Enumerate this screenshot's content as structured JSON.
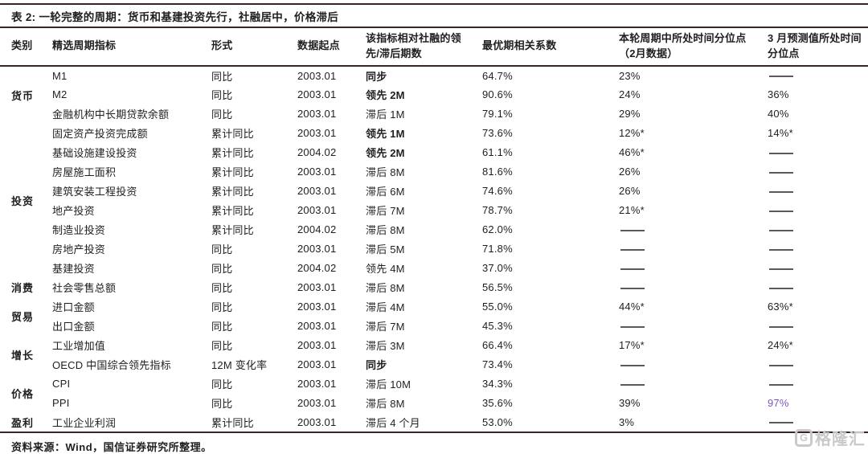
{
  "title": "表 2: 一轮完整的周期：货币和基建投资先行，社融居中，价格滞后",
  "table": {
    "columns": [
      "类别",
      "精选周期指标",
      "形式",
      "数据起点",
      "该指标相对社融的领先/滞后期数",
      "最优期相关系数",
      "本轮周期中所处时间分位点（2月数据）",
      "3 月预测值所处时间分位点"
    ],
    "categories": [
      {
        "label": "货币",
        "span": 3
      },
      {
        "label": "投资",
        "span": 8
      },
      {
        "label": "消费",
        "span": 1
      },
      {
        "label": "贸易",
        "span": 2
      },
      {
        "label": "增长",
        "span": 2
      },
      {
        "label": "价格",
        "span": 2
      },
      {
        "label": "盈利",
        "span": 1
      }
    ],
    "rows": [
      {
        "indicator": "M1",
        "form": "同比",
        "start": "2003.01",
        "lag": "同步",
        "lag_bold": true,
        "corr": "64.7%",
        "current": "23%",
        "forecast": "——"
      },
      {
        "indicator": "M2",
        "form": "同比",
        "start": "2003.01",
        "lag": "领先 2M",
        "lag_bold": true,
        "corr": "90.6%",
        "current": "24%",
        "forecast": "36%"
      },
      {
        "indicator": "金融机构中长期贷款余额",
        "form": "同比",
        "start": "2003.01",
        "lag": "滞后 1M",
        "corr": "79.1%",
        "current": "29%",
        "forecast": "40%"
      },
      {
        "indicator": "固定资产投资完成额",
        "form": "累计同比",
        "start": "2003.01",
        "lag": "领先 1M",
        "lag_bold": true,
        "corr": "73.6%",
        "current": "12%*",
        "forecast": "14%*"
      },
      {
        "indicator": "基础设施建设投资",
        "form": "累计同比",
        "start": "2004.02",
        "lag": "领先 2M",
        "lag_bold": true,
        "corr": "61.1%",
        "current": "46%*",
        "forecast": "——"
      },
      {
        "indicator": "房屋施工面积",
        "form": "累计同比",
        "start": "2003.01",
        "lag": "滞后 8M",
        "corr": "81.6%",
        "current": "26%",
        "forecast": "——"
      },
      {
        "indicator": "建筑安装工程投资",
        "form": "累计同比",
        "start": "2003.01",
        "lag": "滞后 6M",
        "corr": "74.6%",
        "current": "26%",
        "forecast": "——"
      },
      {
        "indicator": "地产投资",
        "form": "累计同比",
        "start": "2003.01",
        "lag": "滞后 7M",
        "corr": "78.7%",
        "current": "21%*",
        "forecast": "——"
      },
      {
        "indicator": "制造业投资",
        "form": "累计同比",
        "start": "2004.02",
        "lag": "滞后 8M",
        "corr": "62.0%",
        "current": "——",
        "forecast": "——"
      },
      {
        "indicator": "房地产投资",
        "form": "同比",
        "start": "2003.01",
        "lag": "滞后 5M",
        "corr": "71.8%",
        "current": "——",
        "forecast": "——"
      },
      {
        "indicator": "基建投资",
        "form": "同比",
        "start": "2004.02",
        "lag": "领先 4M",
        "corr": "37.0%",
        "current": "——",
        "forecast": "——"
      },
      {
        "indicator": "社会零售总额",
        "form": "同比",
        "start": "2003.01",
        "lag": "滞后 8M",
        "corr": "56.5%",
        "current": "——",
        "forecast": "——"
      },
      {
        "indicator": "进口金额",
        "form": "同比",
        "start": "2003.01",
        "lag": "滞后 4M",
        "corr": "55.0%",
        "current": "44%*",
        "forecast": "63%*"
      },
      {
        "indicator": "出口金额",
        "form": "同比",
        "start": "2003.01",
        "lag": "滞后 7M",
        "corr": "45.3%",
        "current": "——",
        "forecast": "——"
      },
      {
        "indicator": "工业增加值",
        "form": "同比",
        "start": "2003.01",
        "lag": "滞后 3M",
        "corr": "66.4%",
        "current": "17%*",
        "forecast": "24%*"
      },
      {
        "indicator": "OECD 中国综合领先指标",
        "form": "12M 变化率",
        "start": "2003.01",
        "lag": "同步",
        "lag_bold": true,
        "corr": "73.4%",
        "current": "——",
        "forecast": "——"
      },
      {
        "indicator": "CPI",
        "form": "同比",
        "start": "2003.01",
        "lag": "滞后 10M",
        "corr": "34.3%",
        "current": "——",
        "forecast": "——"
      },
      {
        "indicator": "PPI",
        "form": "同比",
        "start": "2003.01",
        "lag": "滞后 8M",
        "corr": "35.6%",
        "current": "39%",
        "forecast": "97%",
        "forecast_purple": true
      },
      {
        "indicator": "工业企业利润",
        "form": "累计同比",
        "start": "2003.01",
        "lag": "滞后 4 个月",
        "corr": "53.0%",
        "current": "3%",
        "forecast": "——"
      }
    ]
  },
  "footer": {
    "text": "资料来源：Wind，国信证券研究所整理。"
  },
  "watermark": {
    "icon": "gelonghui-g-icon",
    "icon_glyph": "G",
    "text": "格隆汇"
  },
  "colors": {
    "border": "#3a2424",
    "accent_purple": "#7e57c2",
    "watermark_gray": "#c9c9c9"
  }
}
